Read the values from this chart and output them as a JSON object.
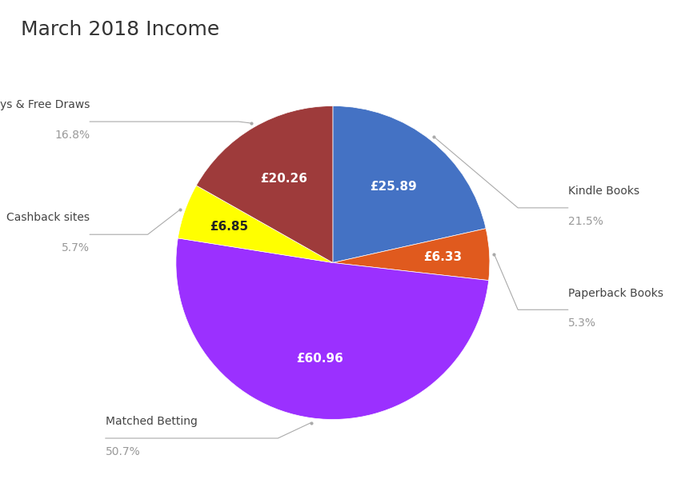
{
  "title": "March 2018 Income",
  "title_fontsize": 18,
  "slices": [
    {
      "label": "Kindle Books",
      "pct": 21.5,
      "value": "£25.89",
      "color": "#4472C4"
    },
    {
      "label": "Paperback Books",
      "pct": 5.3,
      "value": "£6.33",
      "color": "#E05A1E"
    },
    {
      "label": "Matched Betting",
      "pct": 50.7,
      "value": "£60.96",
      "color": "#9B30FF"
    },
    {
      "label": "Cashback sites",
      "pct": 5.7,
      "value": "£6.85",
      "color": "#FFFF00"
    },
    {
      "label": "Surveys & Free Draws",
      "pct": 16.8,
      "value": "£20.26",
      "color": "#9E3B3B"
    }
  ],
  "label_color": "#999999",
  "value_color": "#FFFFFF",
  "background_color": "#FFFFFF",
  "annotation_line_color": "#AAAAAA",
  "label_fontsize": 10,
  "pct_fontsize": 10,
  "value_fontsize": 11
}
